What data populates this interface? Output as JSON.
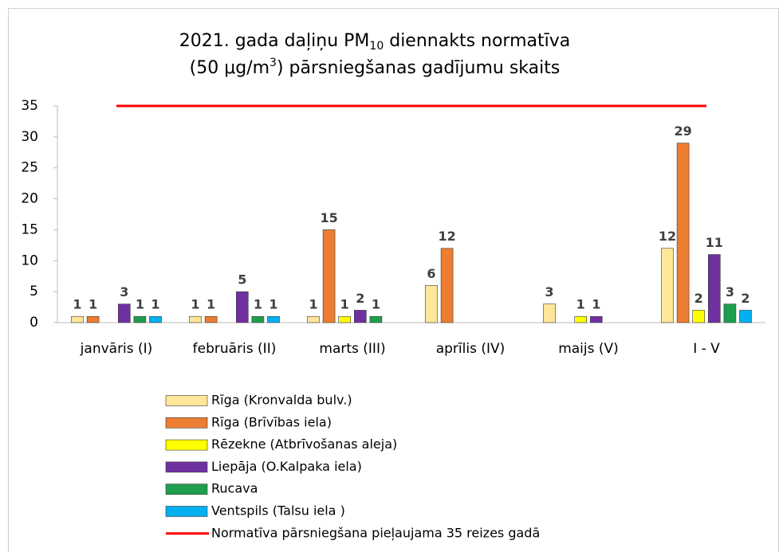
{
  "chart_data": {
    "type": "bar",
    "title": [
      "2021. gada daļiņu PM",
      "10",
      " diennakts normatīva",
      "(50 μg/m",
      "3",
      ") pārsniegšanas gadījumu skaits"
    ],
    "categories": [
      "janvāris (I)",
      "februāris (II)",
      "marts (III)",
      "aprīlis (IV)",
      "maijs (V)",
      "I - V"
    ],
    "series": [
      {
        "name": "Rīga (Kronvalda bulv.)",
        "color": "#FFE699",
        "values": [
          1,
          1,
          1,
          6,
          3,
          12
        ]
      },
      {
        "name": "Rīga (Brīvības iela)",
        "color": "#ED7D31",
        "values": [
          1,
          1,
          15,
          12,
          null,
          29
        ]
      },
      {
        "name": "Rēzekne (Atbrīvošanas aleja)",
        "color": "#FFFF00",
        "values": [
          null,
          null,
          1,
          null,
          1,
          2
        ]
      },
      {
        "name": "Liepāja (O.Kalpaka iela)",
        "color": "#7030A0",
        "values": [
          3,
          5,
          2,
          null,
          1,
          11
        ]
      },
      {
        "name": "Rucava",
        "color": "#1E9E4E",
        "values": [
          1,
          1,
          1,
          null,
          null,
          3
        ]
      },
      {
        "name": "Ventspils (Talsu iela )",
        "color": "#00B0F0",
        "values": [
          1,
          1,
          null,
          null,
          null,
          2
        ]
      },
      {
        "name": "Normatīva pārsniegšana pieļaujama 35 reizes gadā",
        "color": "#FF0000",
        "type": "line",
        "values": [
          35,
          35,
          35,
          35,
          35,
          35
        ]
      }
    ],
    "ylim": [
      0,
      35
    ],
    "yticks": [
      0,
      5,
      10,
      15,
      20,
      25,
      30,
      35
    ],
    "grid": false,
    "legend": "bottom"
  }
}
